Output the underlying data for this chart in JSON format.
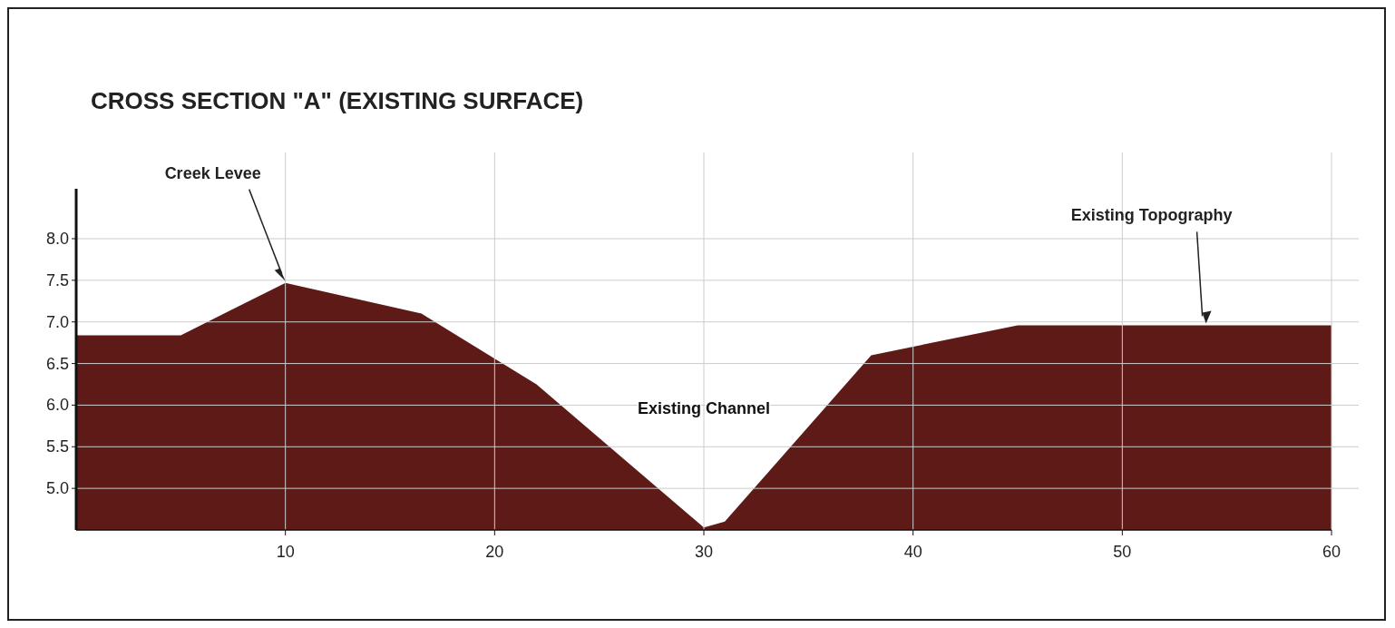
{
  "chart_data": {
    "type": "area",
    "title": "CROSS SECTION \"A\" (EXISTING SURFACE)",
    "x": [
      0,
      5,
      10,
      16.5,
      22,
      30,
      31,
      38,
      45,
      60
    ],
    "series": [
      {
        "color": "#5e1a17",
        "values": [
          6.84,
          6.84,
          7.47,
          7.1,
          6.25,
          4.53,
          4.6,
          6.6,
          6.96,
          6.96
        ]
      }
    ],
    "xlim": [
      0,
      60
    ],
    "xticks": [
      10,
      20,
      30,
      40,
      50,
      60
    ],
    "ylim": [
      4.5,
      8.6
    ],
    "yticks": [
      {
        "value": 5,
        "label": "5.0"
      },
      5.5,
      {
        "value": 6,
        "label": "6.0"
      },
      6.5,
      {
        "value": 7,
        "label": "7.0"
      },
      7.5,
      {
        "value": 8,
        "label": "8.0"
      }
    ],
    "grid": true,
    "annotations": [
      "Creek Levee",
      "Existing Channel",
      "Existing Topography"
    ]
  }
}
